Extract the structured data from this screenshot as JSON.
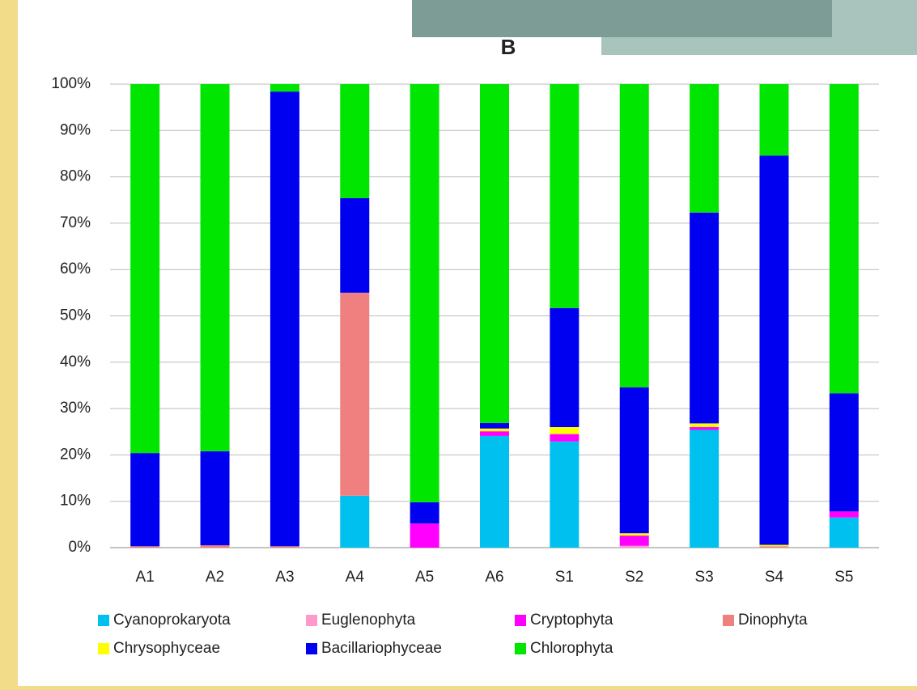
{
  "chart_data": {
    "type": "stacked_bar",
    "title": "B",
    "categories": [
      "A1",
      "A2",
      "A3",
      "A4",
      "A5",
      "A6",
      "S1",
      "S2",
      "S3",
      "S4",
      "S5"
    ],
    "series": [
      {
        "name": "Cyanoprokaryota",
        "color": "#00c0f0",
        "values": [
          0,
          0,
          0,
          11.2,
          0,
          24.1,
          22.9,
          0,
          25.4,
          0,
          6.5
        ]
      },
      {
        "name": "Euglenophyta",
        "color": "#ff99cc",
        "values": [
          0,
          0,
          0,
          0,
          0,
          0,
          0,
          0.4,
          0,
          0,
          0
        ]
      },
      {
        "name": "Cryptophyta",
        "color": "#ff00ff",
        "values": [
          0,
          0,
          0,
          0,
          5.2,
          1.0,
          1.6,
          2.2,
          0.6,
          0,
          1.3
        ]
      },
      {
        "name": "Dinophyta",
        "color": "#f08080",
        "values": [
          0.3,
          0.5,
          0.3,
          43.8,
          0,
          0,
          0,
          0,
          0,
          0.3,
          0
        ]
      },
      {
        "name": "Chrysophyceae",
        "color": "#ffff00",
        "values": [
          0,
          0,
          0,
          0,
          0,
          0.6,
          1.5,
          0.5,
          0.8,
          0.3,
          0
        ]
      },
      {
        "name": "Bacillariophyceae",
        "color": "#0000f0",
        "values": [
          20.1,
          20.3,
          98.1,
          20.4,
          4.6,
          1.2,
          25.7,
          31.5,
          45.5,
          84.0,
          25.5
        ]
      },
      {
        "name": "Chlorophyta",
        "color": "#00e600",
        "values": [
          79.6,
          79.2,
          1.6,
          24.6,
          90.2,
          73.1,
          48.3,
          65.4,
          27.7,
          15.4,
          66.7
        ]
      }
    ],
    "ylim": [
      0,
      100
    ],
    "yticks": [
      {
        "value": 0,
        "label": "0%"
      },
      {
        "value": 10,
        "label": "10%"
      },
      {
        "value": 20,
        "label": "20%"
      },
      {
        "value": 30,
        "label": "30%"
      },
      {
        "value": 40,
        "label": "40%"
      },
      {
        "value": 50,
        "label": "50%"
      },
      {
        "value": 60,
        "label": "60%"
      },
      {
        "value": 70,
        "label": "70%"
      },
      {
        "value": 80,
        "label": "80%"
      },
      {
        "value": 90,
        "label": "90%"
      },
      {
        "value": 100,
        "label": "100%"
      }
    ],
    "grid": true
  }
}
